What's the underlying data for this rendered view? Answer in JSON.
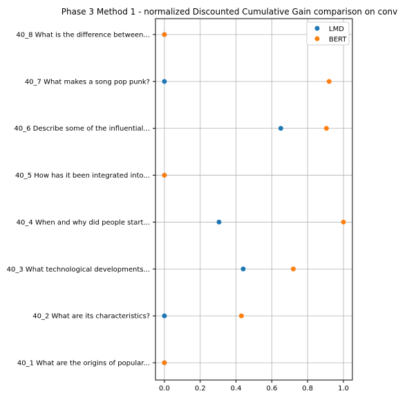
{
  "chart_data": {
    "type": "scatter",
    "title": "Phase 3 Method 1 - normalized Discounted Cumulative Gain comparison on conv",
    "xlabel": "",
    "ylabel": "",
    "xlim": [
      -0.05,
      1.05
    ],
    "xticks": [
      "0.0",
      "0.2",
      "0.4",
      "0.6",
      "0.8",
      "1.0"
    ],
    "grid": true,
    "legend_position": "top-right",
    "categories": [
      "40_1 What are the origins of popular...",
      "40_2 What are its characteristics?",
      "40_3 What technological developments...",
      "40_4 When and why did people start...",
      "40_5 How has it been integrated into...",
      "40_6 Describe some of the influential...",
      "40_7 What makes a song pop punk?",
      "40_8 What is the difference between..."
    ],
    "series": [
      {
        "name": "LMD",
        "color": "#1f77b4",
        "values": [
          0.0,
          0.0,
          0.44,
          0.305,
          0.0,
          0.65,
          0.0,
          0.0
        ]
      },
      {
        "name": "BERT",
        "color": "#ff7f0e",
        "values": [
          0.0,
          0.43,
          0.72,
          1.0,
          0.0,
          0.905,
          0.92,
          0.0
        ]
      }
    ]
  }
}
